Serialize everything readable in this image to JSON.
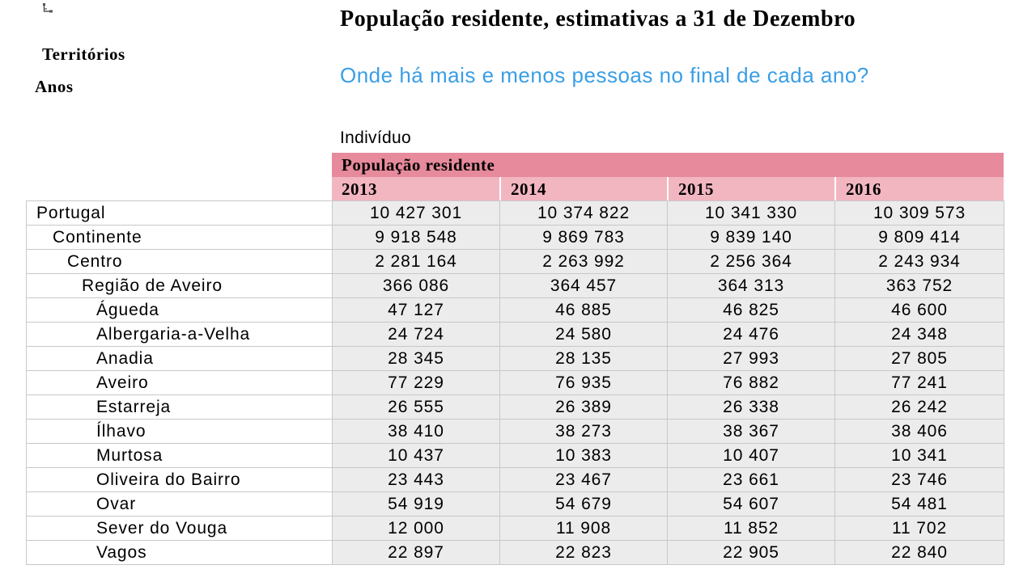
{
  "sidebar": {
    "pivot_icon": "pivot-table-icon",
    "dimensions": [
      "Territórios",
      "Anos"
    ]
  },
  "header": {
    "title": "População residente, estimativas a 31 de Dezembro",
    "subtitle": "Onde há mais e menos pessoas no final de cada ano?",
    "unit": "Indivíduo"
  },
  "table": {
    "group_header": "População residente",
    "years": [
      "2013",
      "2014",
      "2015",
      "2016"
    ],
    "rows": [
      {
        "label": "Portugal",
        "level": 0,
        "values": [
          "10 427 301",
          "10 374 822",
          "10 341 330",
          "10 309 573"
        ]
      },
      {
        "label": "Continente",
        "level": 1,
        "values": [
          "9 918 548",
          "9 869 783",
          "9 839 140",
          "9 809 414"
        ]
      },
      {
        "label": "Centro",
        "level": 2,
        "values": [
          "2 281 164",
          "2 263 992",
          "2 256 364",
          "2 243 934"
        ]
      },
      {
        "label": "Região de Aveiro",
        "level": 3,
        "values": [
          "366 086",
          "364 457",
          "364 313",
          "363 752"
        ]
      },
      {
        "label": "Águeda",
        "level": 4,
        "values": [
          "47 127",
          "46 885",
          "46 825",
          "46 600"
        ]
      },
      {
        "label": "Albergaria-a-Velha",
        "level": 4,
        "values": [
          "24 724",
          "24 580",
          "24 476",
          "24 348"
        ]
      },
      {
        "label": "Anadia",
        "level": 4,
        "values": [
          "28 345",
          "28 135",
          "27 993",
          "27 805"
        ]
      },
      {
        "label": "Aveiro",
        "level": 4,
        "values": [
          "77 229",
          "76 935",
          "76 882",
          "77 241"
        ]
      },
      {
        "label": "Estarreja",
        "level": 4,
        "values": [
          "26 555",
          "26 389",
          "26 338",
          "26 242"
        ]
      },
      {
        "label": "Ílhavo",
        "level": 4,
        "values": [
          "38 410",
          "38 273",
          "38 367",
          "38 406"
        ]
      },
      {
        "label": "Murtosa",
        "level": 4,
        "values": [
          "10 437",
          "10 383",
          "10 407",
          "10 341"
        ]
      },
      {
        "label": "Oliveira do Bairro",
        "level": 4,
        "values": [
          "23 443",
          "23 467",
          "23 661",
          "23 746"
        ]
      },
      {
        "label": "Ovar",
        "level": 4,
        "values": [
          "54 919",
          "54 679",
          "54 607",
          "54 481"
        ]
      },
      {
        "label": "Sever do Vouga",
        "level": 4,
        "values": [
          "12 000",
          "11 908",
          "11 852",
          "11 702"
        ]
      },
      {
        "label": "Vagos",
        "level": 4,
        "values": [
          "22 897",
          "22 823",
          "22 905",
          "22 840"
        ]
      }
    ]
  },
  "colors": {
    "group_header_bg": "#e68a9c",
    "year_header_bg": "#f2b6c1",
    "subtitle": "#3a9ee6",
    "value_cell_bg": "#ececec"
  }
}
